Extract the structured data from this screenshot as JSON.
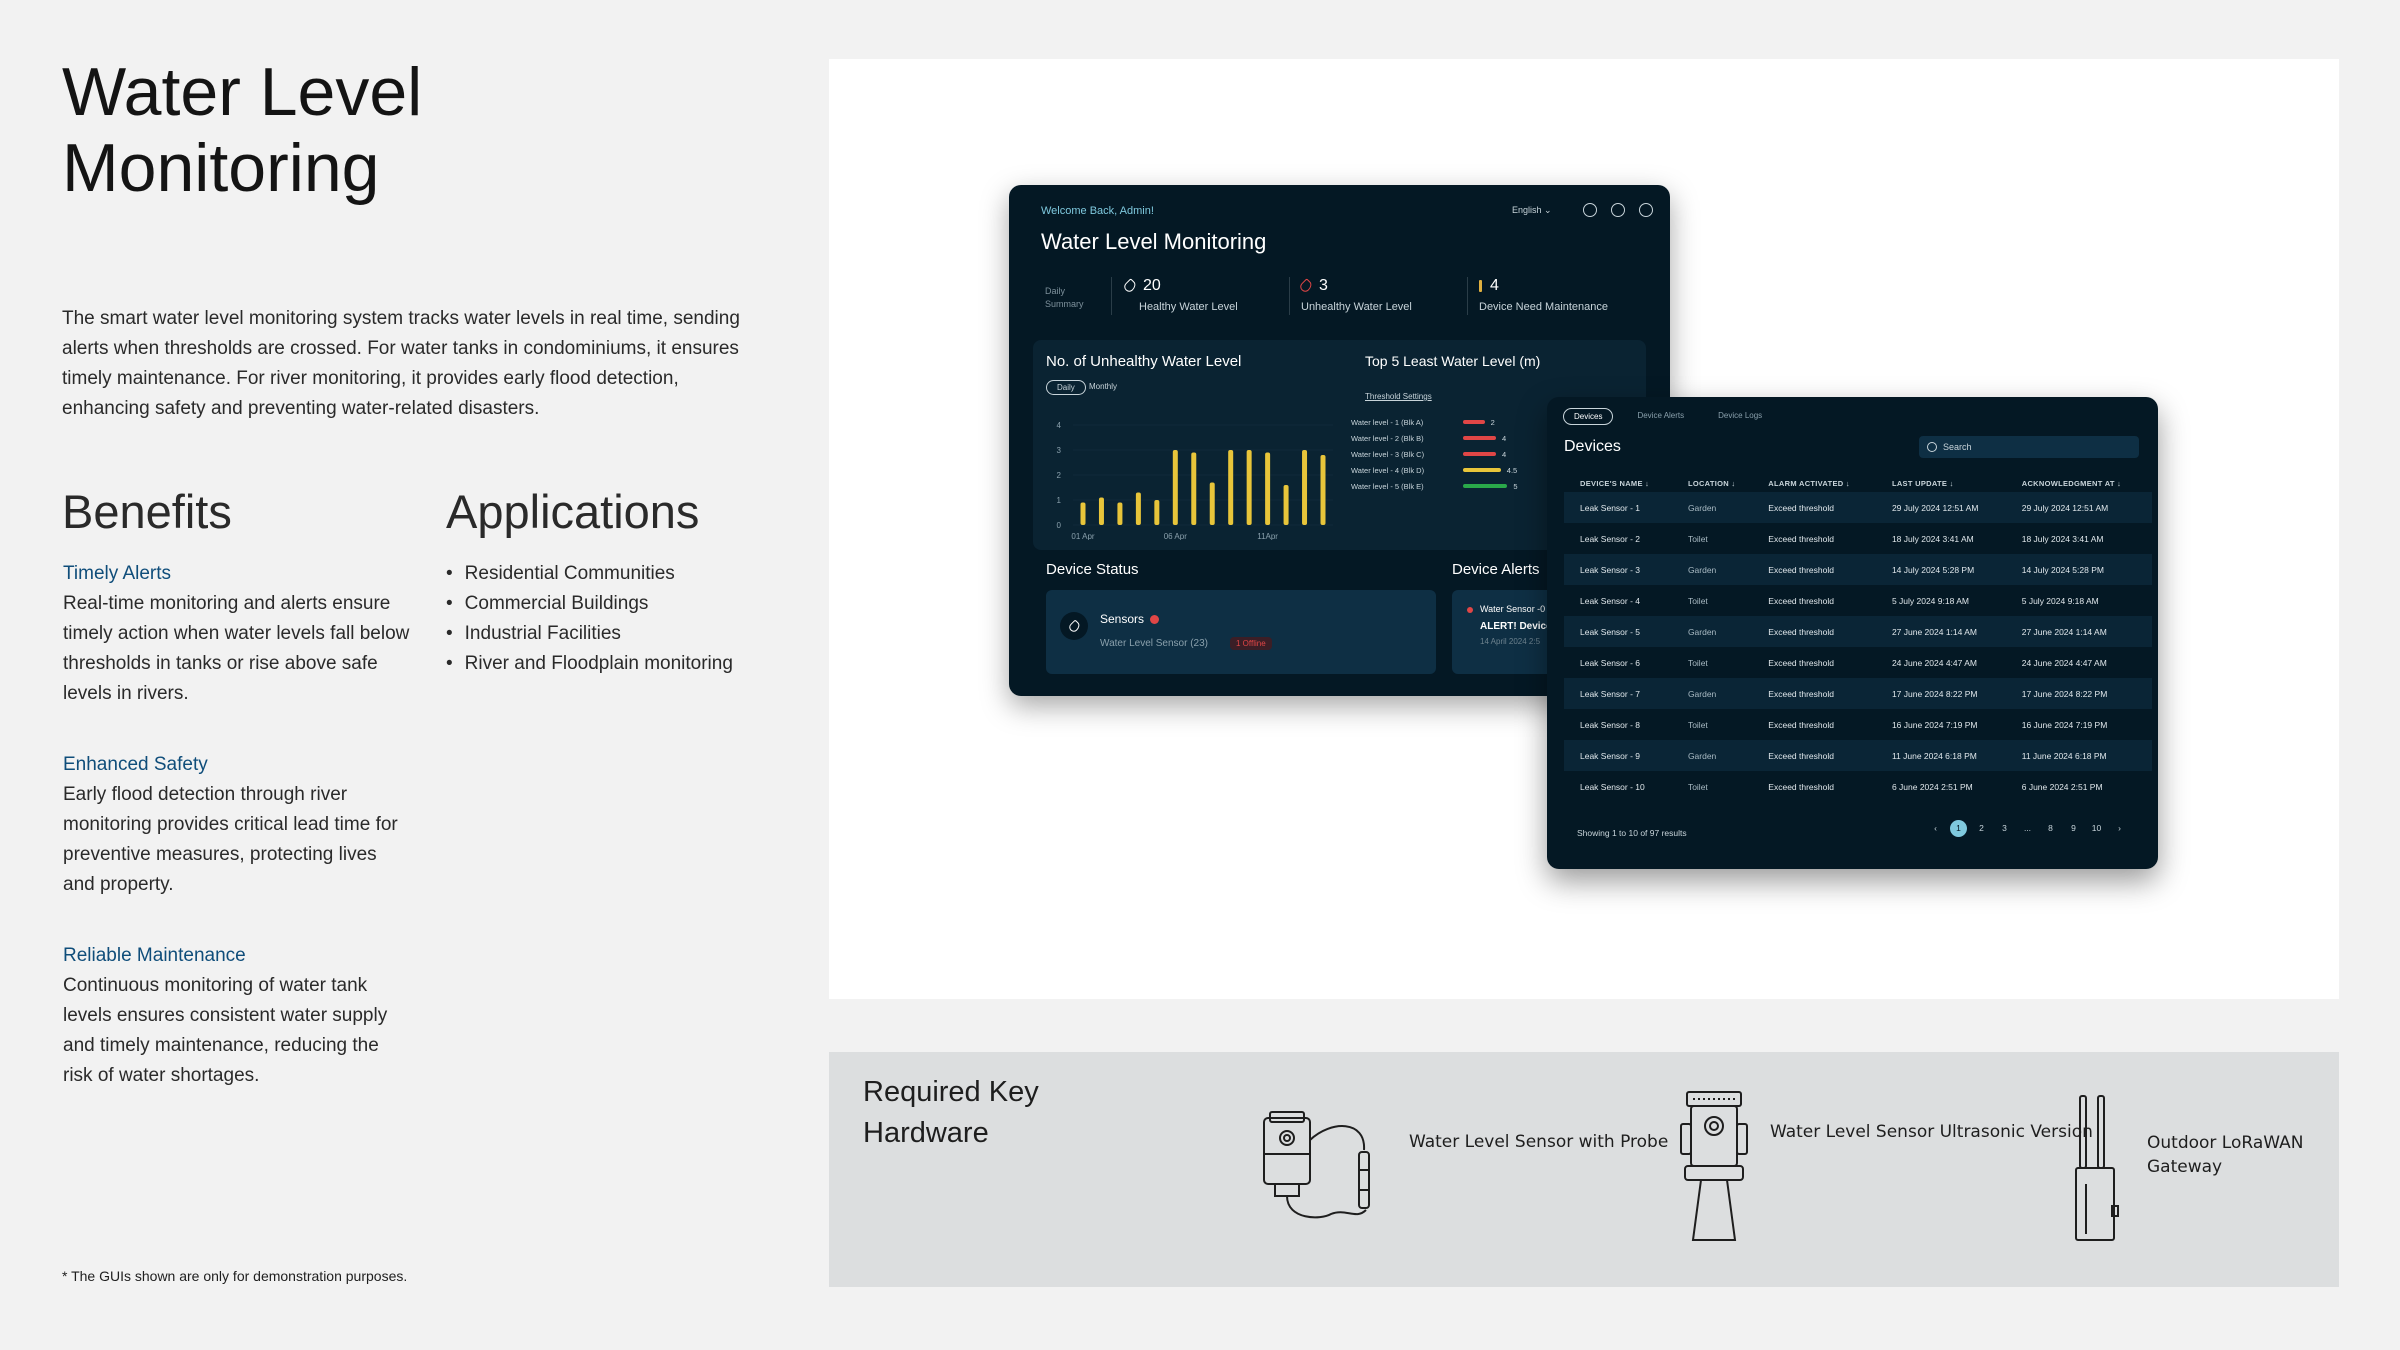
{
  "page": {
    "title_line1": "Water Level",
    "title_line2": "Monitoring",
    "intro": "The smart water level monitoring system tracks water levels in real time, sending alerts when thresholds are crossed. For water tanks in condominiums, it ensures timely maintenance. For river monitoring, it provides early flood detection, enhancing safety and preventing water-related disasters.",
    "benefits_heading": "Benefits",
    "applications_heading": "Applications",
    "benefits": [
      {
        "title": "Timely Alerts",
        "text": "Real-time monitoring and alerts ensure timely action when water levels fall below thresholds in tanks or rise above safe levels in rivers."
      },
      {
        "title": "Enhanced Safety",
        "text": "Early flood detection through river monitoring provides critical lead time for preventive measures, protecting lives and property."
      },
      {
        "title": "Reliable Maintenance",
        "text": "Continuous monitoring of water tank levels ensures consistent water supply and timely maintenance, reducing the risk of water shortages."
      }
    ],
    "applications": [
      "Residential Communities",
      "Commercial Buildings",
      "Industrial Facilities",
      "River and Floodplain monitoring"
    ],
    "footnote": "* The GUIs shown are only for demonstration purposes."
  },
  "dashboard": {
    "welcome": "Welcome Back,  Admin!",
    "language": "English ⌄",
    "title": "Water Level Monitoring",
    "summary_label": "Daily Summary",
    "stats": [
      {
        "value": "20",
        "label": "Healthy Water Level",
        "color": "#ffffff"
      },
      {
        "value": "3",
        "label": "Unhealthy Water Level",
        "color": "#e04646"
      },
      {
        "value": "4",
        "label": "Device Need Maintenance",
        "color": "#e0b040"
      }
    ],
    "unhealthy_title": "No. of Unhealthy Water Level",
    "toggle": [
      "Daily",
      "Monthly"
    ],
    "top5_title": "Top 5 Least Water Level  (m)",
    "threshold_link": "Threshold Settings",
    "top5": [
      {
        "name": "Water level - 1 (Blk A)",
        "value": "2",
        "color": "#e04646",
        "fraction": 0.36
      },
      {
        "name": "Water level - 2 (Blk B)",
        "value": "4",
        "color": "#e04646",
        "fraction": 0.55
      },
      {
        "name": "Water level - 3 (Blk C)",
        "value": "4",
        "color": "#e04646",
        "fraction": 0.55
      },
      {
        "name": "Water level - 4 (Blk D)",
        "value": "4.5",
        "color": "#e8c53a",
        "fraction": 0.63
      },
      {
        "name": "Water level - 5 (Blk E)",
        "value": "5",
        "color": "#2aa84a",
        "fraction": 0.74
      }
    ],
    "device_status_title": "Device Status",
    "sensors_label": "Sensors",
    "sensor_sub": "Water Level Sensor (23)",
    "offline": "1 Offline",
    "device_alerts_title": "Device Alerts",
    "alert_line1": "Water  Sensor -0",
    "alert_line2": "ALERT! Device",
    "alert_line3": "14 April 2024 2:5"
  },
  "chart_data": {
    "type": "bar",
    "title": "No. of Unhealthy Water Level",
    "yticks": [
      "0",
      "1",
      "2",
      "3",
      "4"
    ],
    "ylim": [
      0,
      4
    ],
    "xticks": [
      "01 Apr",
      "06 Apr",
      "11Apr"
    ],
    "values": [
      0.9,
      1.1,
      0.9,
      1.3,
      1.0,
      3.0,
      2.9,
      1.7,
      3.0,
      3.0,
      2.9,
      1.6,
      3.0,
      2.8
    ],
    "bar_color": "#e8c53a"
  },
  "devices": {
    "tabs": [
      "Devices",
      "Device Alerts",
      "Device Logs"
    ],
    "title": "Devices",
    "search_placeholder": "Search",
    "columns": [
      "DEVICE'S NAME ↓",
      "LOCATION ↓",
      "ALARM ACTIVATED ↓",
      "LAST UPDATE ↓",
      "ACKNOWLEDGMENT AT ↓"
    ],
    "rows": [
      [
        "Leak Sensor - 1",
        "Garden",
        "Exceed threshold",
        "29 July 2024 12:51 AM",
        "29 July 2024 12:51 AM"
      ],
      [
        "Leak Sensor - 2",
        "Toilet",
        "Exceed threshold",
        "18 July 2024 3:41 AM",
        "18 July 2024 3:41 AM"
      ],
      [
        "Leak Sensor - 3",
        "Garden",
        "Exceed threshold",
        "14 July 2024 5:28 PM",
        "14 July 2024 5:28 PM"
      ],
      [
        "Leak Sensor - 4",
        "Toilet",
        "Exceed threshold",
        "5 July 2024 9:18 AM",
        "5 July 2024 9:18 AM"
      ],
      [
        "Leak Sensor - 5",
        "Garden",
        "Exceed threshold",
        "27 June 2024 1:14 AM",
        "27 June 2024 1:14 AM"
      ],
      [
        "Leak Sensor - 6",
        "Toilet",
        "Exceed threshold",
        "24 June 2024 4:47 AM",
        "24 June 2024 4:47 AM"
      ],
      [
        "Leak Sensor - 7",
        "Garden",
        "Exceed threshold",
        "17 June 2024 8:22 PM",
        "17 June 2024 8:22 PM"
      ],
      [
        "Leak Sensor - 8",
        "Toilet",
        "Exceed threshold",
        "16 June 2024 7:19 PM",
        "16 June 2024 7:19 PM"
      ],
      [
        "Leak Sensor - 9",
        "Garden",
        "Exceed threshold",
        "11 June 2024 6:18 PM",
        "11 June 2024 6:18 PM"
      ],
      [
        "Leak Sensor - 10",
        "Toilet",
        "Exceed threshold",
        "6 June 2024 2:51 PM",
        "6 June 2024 2:51 PM"
      ]
    ],
    "footer": "Showing 1 to 10 of 97 results",
    "pages": [
      "‹",
      "1",
      "2",
      "3",
      "...",
      "8",
      "9",
      "10",
      "›"
    ],
    "active_page": "1"
  },
  "hardware": {
    "title": "Required Key Hardware",
    "items": [
      {
        "label": "Water Level Sensor with Probe",
        "icon": "water-level-sensor-probe-icon"
      },
      {
        "label": "Water Level Sensor Ultrasonic Version",
        "icon": "ultrasonic-sensor-icon"
      },
      {
        "label": "Outdoor LoRaWAN Gateway",
        "icon": "lorawan-gateway-icon"
      }
    ]
  }
}
